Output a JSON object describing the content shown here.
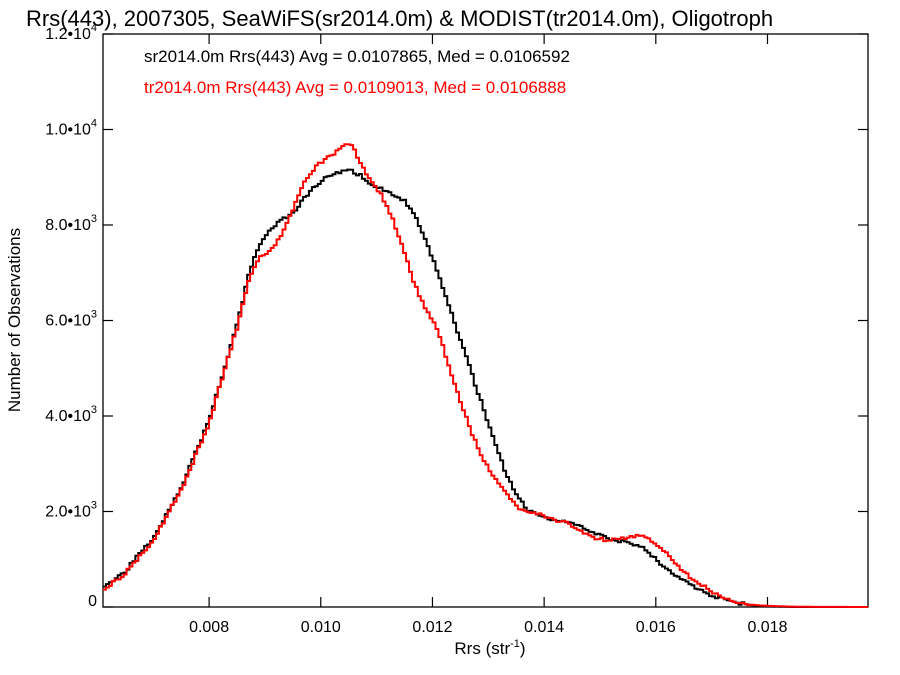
{
  "chart_data": {
    "type": "line",
    "title": "Rrs(443), 2007305, SeaWiFS(sr2014.0m) & MODIST(tr2014.0m), Oligotroph",
    "xlabel": "Rrs (str",
    "xlabel_sup": "-1",
    "xlabel_end": ")",
    "ylabel": "Number of Observations",
    "xlim": [
      0.0061,
      0.0198
    ],
    "ylim": [
      0,
      12000
    ],
    "x_ticks": [
      {
        "value": 0.008,
        "label": "0.008"
      },
      {
        "value": 0.01,
        "label": "0.010"
      },
      {
        "value": 0.012,
        "label": "0.012"
      },
      {
        "value": 0.014,
        "label": "0.014"
      },
      {
        "value": 0.016,
        "label": "0.016"
      },
      {
        "value": 0.018,
        "label": "0.018"
      }
    ],
    "y_ticks": [
      {
        "value": 0,
        "mant": "0",
        "exp": ""
      },
      {
        "value": 2000,
        "mant": "2.0•10",
        "exp": "3"
      },
      {
        "value": 4000,
        "mant": "4.0•10",
        "exp": "3"
      },
      {
        "value": 6000,
        "mant": "6.0•10",
        "exp": "3"
      },
      {
        "value": 8000,
        "mant": "8.0•10",
        "exp": "3"
      },
      {
        "value": 10000,
        "mant": "1.0•10",
        "exp": "4"
      },
      {
        "value": 12000,
        "mant": "1.2•10",
        "exp": "4"
      }
    ],
    "annotations": [
      {
        "text": "sr2014.0m Rrs(443) Avg = 0.0107865, Med = 0.0106592",
        "color": "#000000"
      },
      {
        "text": "tr2014.0m Rrs(443) Avg = 0.0109013, Med = 0.0106888",
        "color": "#ff0000"
      }
    ],
    "series": [
      {
        "color": "#000000",
        "x": [
          0.0061,
          0.0065,
          0.007,
          0.0075,
          0.008,
          0.0085,
          0.0087,
          0.0089,
          0.0091,
          0.0093,
          0.0095,
          0.0097,
          0.0099,
          0.0101,
          0.0103,
          0.0105,
          0.0107,
          0.0109,
          0.0111,
          0.0113,
          0.0115,
          0.0117,
          0.0119,
          0.0121,
          0.0123,
          0.0125,
          0.0127,
          0.0129,
          0.0131,
          0.0133,
          0.0135,
          0.0137,
          0.0139,
          0.0141,
          0.0143,
          0.0145,
          0.0147,
          0.0149,
          0.0151,
          0.0153,
          0.0155,
          0.0157,
          0.0159,
          0.0161,
          0.0163,
          0.0165,
          0.0167,
          0.0169,
          0.0171,
          0.0173,
          0.0175,
          0.0177,
          0.0179,
          0.0181,
          0.0185,
          0.0198
        ],
        "y": [
          400,
          750,
          1450,
          2500,
          3900,
          5900,
          6900,
          7600,
          7900,
          8100,
          8250,
          8550,
          8800,
          9000,
          9100,
          9150,
          9050,
          8850,
          8750,
          8650,
          8500,
          8150,
          7600,
          7000,
          6300,
          5600,
          4900,
          4200,
          3500,
          2850,
          2350,
          2050,
          1900,
          1850,
          1800,
          1750,
          1650,
          1550,
          1450,
          1400,
          1350,
          1300,
          1100,
          900,
          700,
          550,
          400,
          300,
          200,
          120,
          80,
          40,
          20,
          10,
          0,
          0
        ]
      },
      {
        "color": "#ff0000",
        "x": [
          0.0061,
          0.0065,
          0.007,
          0.0075,
          0.008,
          0.0085,
          0.0087,
          0.0089,
          0.0091,
          0.0093,
          0.0095,
          0.0097,
          0.0099,
          0.0101,
          0.0103,
          0.0104,
          0.0105,
          0.0106,
          0.0107,
          0.0109,
          0.0111,
          0.0113,
          0.0115,
          0.0117,
          0.0119,
          0.0121,
          0.0123,
          0.0125,
          0.0127,
          0.0129,
          0.0131,
          0.0133,
          0.0135,
          0.0137,
          0.0139,
          0.0141,
          0.0143,
          0.0145,
          0.0147,
          0.0149,
          0.0151,
          0.0153,
          0.0155,
          0.0157,
          0.0159,
          0.0161,
          0.0163,
          0.0165,
          0.0167,
          0.0169,
          0.0171,
          0.0173,
          0.0175,
          0.0177,
          0.0179,
          0.0181,
          0.0185,
          0.0198
        ],
        "y": [
          350,
          700,
          1400,
          2450,
          3850,
          5850,
          6800,
          7300,
          7450,
          7800,
          8300,
          8900,
          9200,
          9400,
          9550,
          9650,
          9700,
          9600,
          9300,
          8900,
          8600,
          8100,
          7400,
          6700,
          6200,
          5800,
          5000,
          4300,
          3650,
          3100,
          2750,
          2400,
          2100,
          2000,
          1950,
          1850,
          1800,
          1700,
          1550,
          1450,
          1400,
          1400,
          1450,
          1500,
          1400,
          1250,
          1000,
          750,
          550,
          400,
          250,
          150,
          80,
          50,
          30,
          20,
          5,
          0
        ]
      }
    ]
  }
}
